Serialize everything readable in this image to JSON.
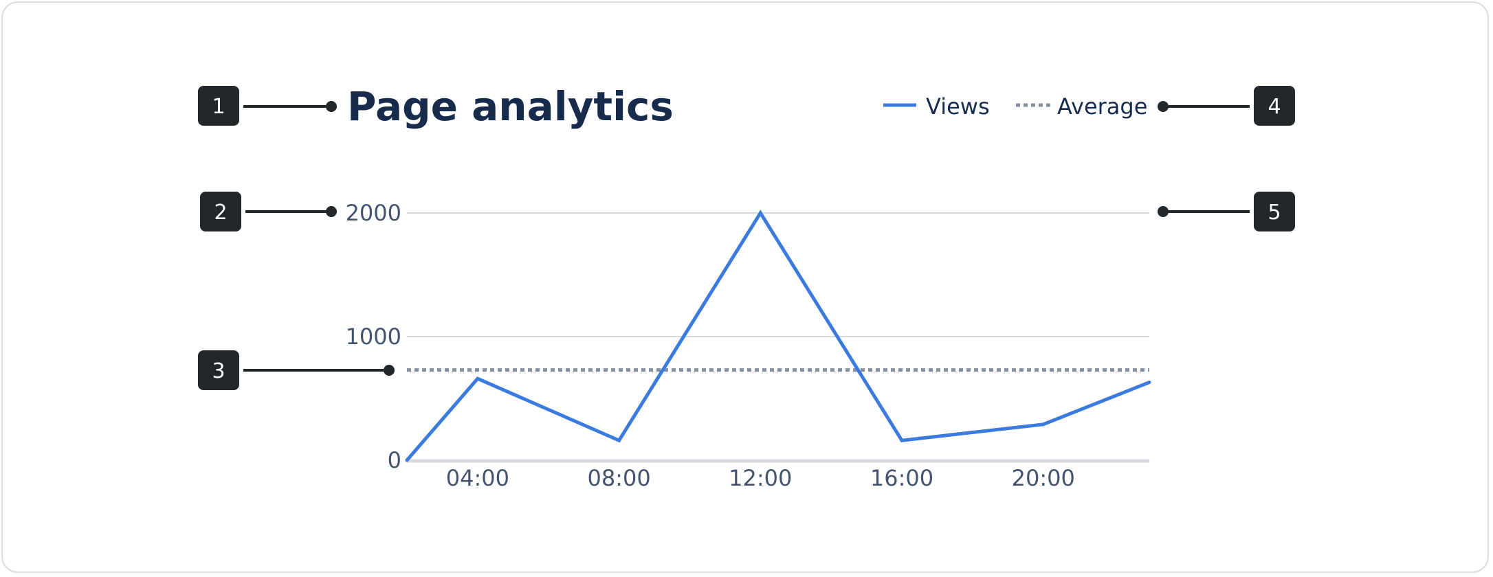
{
  "chart_data": {
    "type": "line",
    "title": "Page analytics",
    "x": [
      "02:00",
      "04:00",
      "08:00",
      "12:00",
      "16:00",
      "20:00",
      "23:00"
    ],
    "x_hours": [
      2,
      4,
      8,
      12,
      16,
      20,
      23
    ],
    "x_ticks": [
      "04:00",
      "08:00",
      "12:00",
      "16:00",
      "20:00"
    ],
    "x_tick_hours": [
      4,
      8,
      12,
      16,
      20
    ],
    "xlim": [
      2,
      23
    ],
    "ylim": [
      0,
      2000
    ],
    "y_ticks": [
      0,
      1000,
      2000
    ],
    "grid": true,
    "legend_placement": "top-right",
    "series": [
      {
        "name": "Views",
        "values": [
          0,
          660,
          160,
          2000,
          160,
          290,
          630
        ],
        "color": "#3b7be0"
      }
    ],
    "reference_lines": [
      {
        "name": "Average",
        "value": 730,
        "style": "dotted",
        "color": "#8590a2"
      }
    ]
  },
  "annotations": [
    {
      "label": "1",
      "target": "title"
    },
    {
      "label": "2",
      "target": "y-axis"
    },
    {
      "label": "3",
      "target": "average-line"
    },
    {
      "label": "4",
      "target": "legend"
    },
    {
      "label": "5",
      "target": "plot-area"
    }
  ],
  "colors": {
    "title": "#172b4d",
    "tick": "#44546f",
    "grid": "#d6d9de",
    "badge": "#22272b"
  }
}
